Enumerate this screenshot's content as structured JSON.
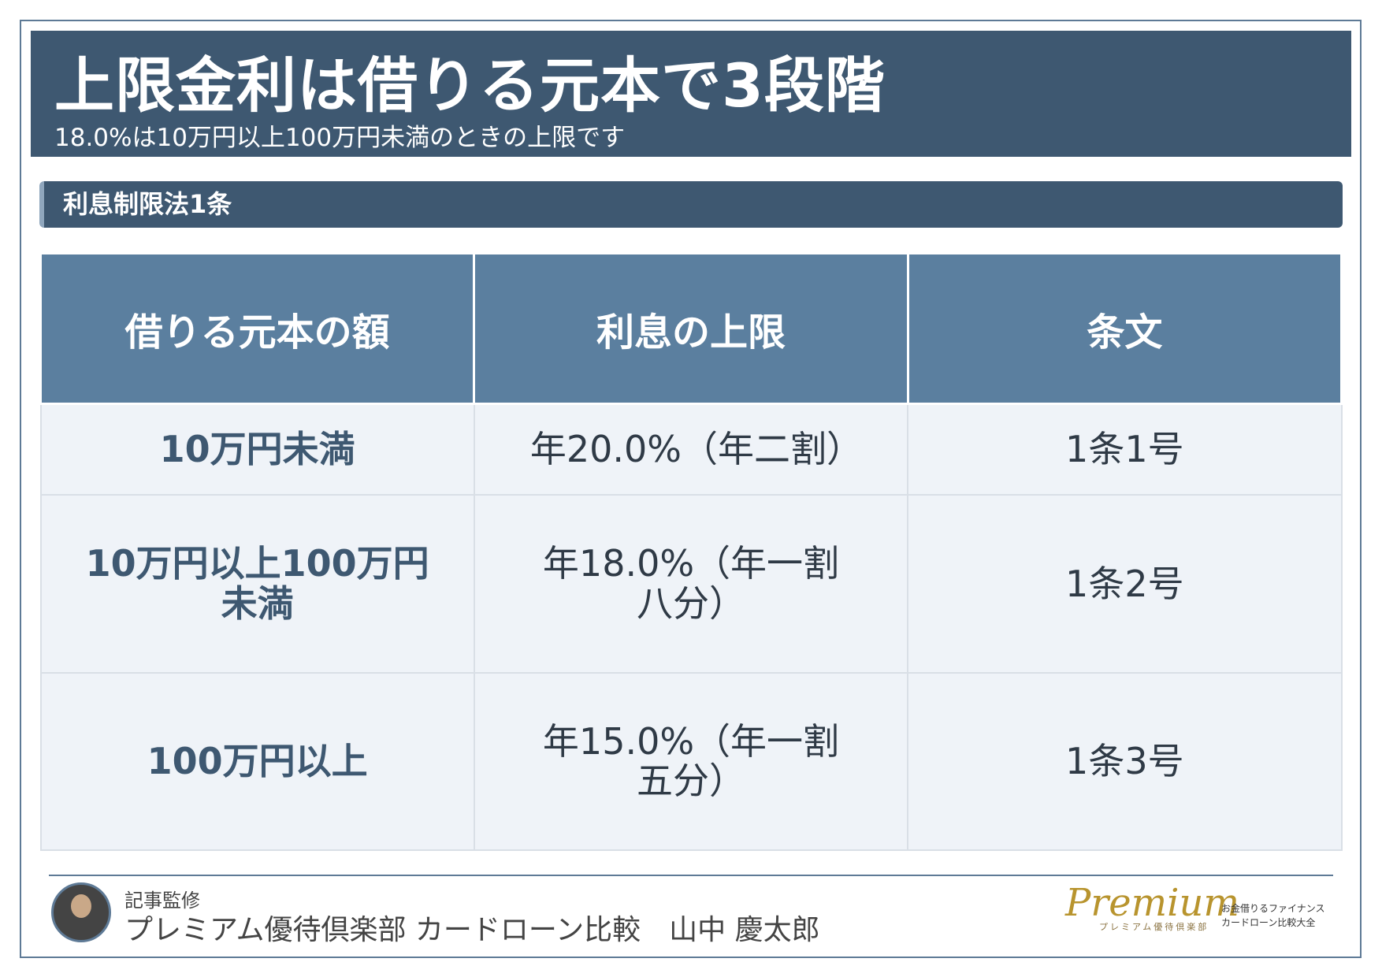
{
  "header": {
    "title": "上限金利は借りる元本で3段階",
    "subtitle": "18.0%は10万円以上100万円未満のときの上限です"
  },
  "section": {
    "title": "利息制限法1条"
  },
  "table": {
    "columns": [
      "借りる元本の額",
      "利息の上限",
      "条文"
    ],
    "rows": [
      [
        "10万円未満",
        "年20.0%（年二割）",
        "1条1号"
      ],
      [
        "10万円以上100万円未満",
        "年18.0%（年一割八分）",
        "1条2号"
      ],
      [
        "100万円以上",
        "年15.0%（年一割五分）",
        "1条3号"
      ]
    ]
  },
  "footer": {
    "label": "記事監修",
    "name": "プレミアム優待倶楽部 カードローン比較　山中 慶太郎"
  },
  "logo": {
    "brand": "Premium",
    "sub": "プレミアム優待倶楽部",
    "line1": "お金借りるファイナンス",
    "line2": "カードローン比較大全"
  }
}
